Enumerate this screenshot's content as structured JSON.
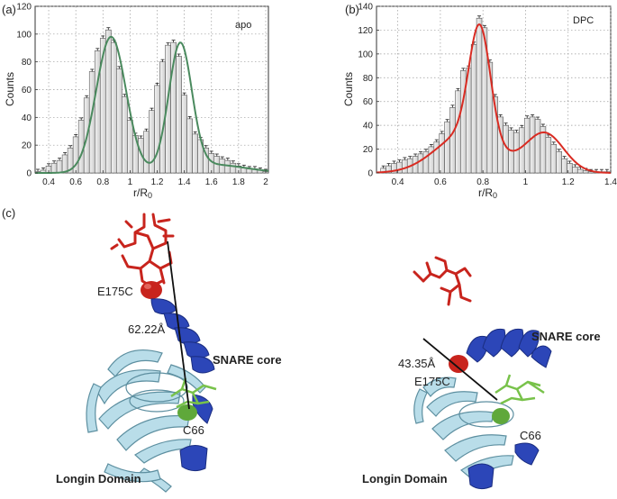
{
  "panel_labels": {
    "a": "(a)",
    "b": "(b)",
    "c": "(c)"
  },
  "chart_data": [
    {
      "id": "a",
      "type": "bar",
      "legend": "apo",
      "xlabel": "r/R",
      "xlabel_sub": "0",
      "ylabel": "Counts",
      "xlim": [
        0.3,
        2.02
      ],
      "ylim": [
        0,
        120
      ],
      "xticks": [
        0.4,
        0.6,
        0.8,
        1,
        1.2,
        1.4,
        1.6,
        1.8,
        2
      ],
      "xtick_labels": [
        "0.4",
        "0.6",
        "0.8",
        "1",
        "1.2",
        "1.4",
        "1.6",
        "1.8",
        "2"
      ],
      "yticks": [
        0,
        20,
        40,
        60,
        80,
        100,
        120
      ],
      "ytick_labels": [
        "0",
        "20",
        "40",
        "60",
        "80",
        "100",
        "120"
      ],
      "grid": true,
      "bin_start": 0.3,
      "bin_width": 0.04,
      "bar_color": "#dcdcdc",
      "curve_color": "#4a8a5e",
      "values": [
        1,
        2,
        5,
        7,
        9,
        13,
        18,
        26,
        38,
        54,
        73,
        88,
        97,
        103,
        94,
        75,
        55,
        38,
        27,
        25,
        30,
        45,
        63,
        80,
        92,
        94,
        84,
        56,
        39,
        28,
        24,
        18,
        14,
        12,
        10,
        9,
        7,
        5,
        4,
        3,
        3,
        2,
        1
      ],
      "fit": {
        "type": "sum_of_gaussians",
        "components": [
          {
            "amp": 98,
            "center": 0.86,
            "sigma": 0.11
          },
          {
            "amp": 90,
            "center": 1.37,
            "sigma": 0.085
          },
          {
            "amp": 6,
            "center": 1.6,
            "sigma": 0.25
          }
        ]
      }
    },
    {
      "id": "b",
      "type": "bar",
      "legend": "DPC",
      "xlabel": "r/R",
      "xlabel_sub": "0",
      "ylabel": "Counts",
      "xlim": [
        0.3,
        1.4
      ],
      "ylim": [
        0,
        140
      ],
      "xticks": [
        0.4,
        0.6,
        0.8,
        1,
        1.2,
        1.4
      ],
      "xtick_labels": [
        "0.4",
        "0.6",
        "0.8",
        "1",
        "1.2",
        "1.4"
      ],
      "yticks": [
        0,
        20,
        40,
        60,
        80,
        100,
        120,
        140
      ],
      "ytick_labels": [
        "0",
        "20",
        "40",
        "60",
        "80",
        "100",
        "120",
        "140"
      ],
      "grid": true,
      "bin_start": 0.32,
      "bin_width": 0.025,
      "bar_color": "#dcdcdc",
      "curve_color": "#d92b22",
      "values": [
        4,
        6,
        8,
        9,
        11,
        12,
        14,
        16,
        18,
        22,
        26,
        33,
        43,
        55,
        69,
        86,
        88,
        108,
        130,
        122,
        93,
        64,
        47,
        40,
        36,
        34,
        38,
        46,
        47,
        45,
        39,
        30,
        24,
        18,
        12,
        8,
        5,
        3,
        2,
        1,
        1,
        1,
        1
      ],
      "fit": {
        "type": "sum_of_gaussians",
        "components": [
          {
            "amp": 95,
            "center": 0.785,
            "sigma": 0.05
          },
          {
            "amp": 33,
            "center": 0.72,
            "sigma": 0.14
          },
          {
            "amp": 33,
            "center": 1.09,
            "sigma": 0.09
          }
        ]
      }
    }
  ],
  "structures": {
    "left": {
      "distance": "62.22Å",
      "residue_top": "E175C",
      "residue_bottom": "C66",
      "domain_snare": "SNARE core",
      "domain_longin": "Longin Domain"
    },
    "right": {
      "distance": "43.35Å",
      "residue_top": "E175C",
      "residue_bottom": "C66",
      "domain_snare": "SNARE core",
      "domain_longin": "Longin Domain"
    }
  },
  "colors": {
    "dye_red": "#c8241d",
    "helix_blue": "#2c46b8",
    "longin_lightblue": "#b9dde9",
    "ligand_green": "#78c24a",
    "grid": "#9a9a9a"
  }
}
